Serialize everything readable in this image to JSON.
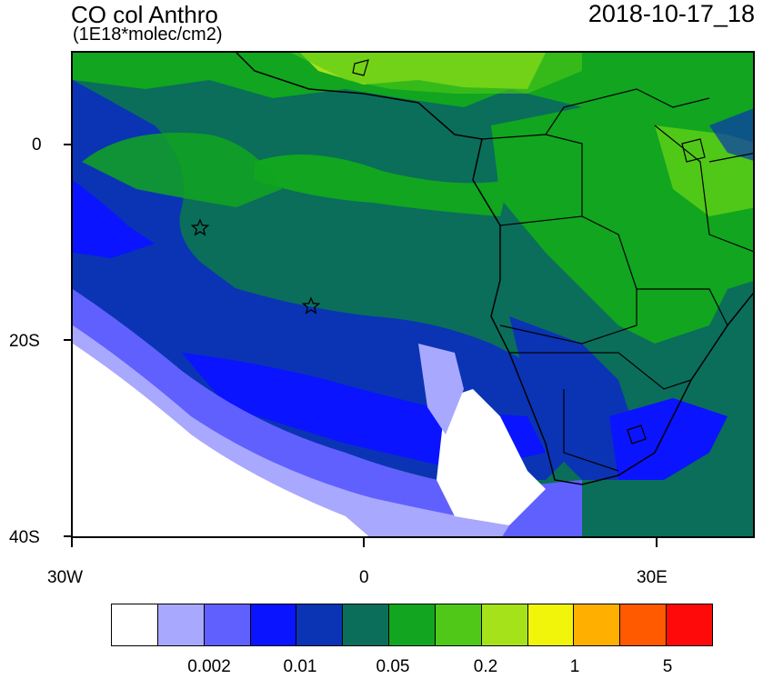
{
  "title": "CO col Anthro",
  "units": "(1E18*molec/cm2)",
  "datetime": "2018-10-17_18",
  "lat_labels": [
    "0",
    "20S",
    "40S"
  ],
  "lon_labels": [
    "30W",
    "0",
    "30E"
  ],
  "colorbar": {
    "colors": [
      "#ffffff",
      "#a8a8ff",
      "#6060ff",
      "#0a14ff",
      "#0a34b4",
      "#0a6e5a",
      "#11a520",
      "#50c818",
      "#a6e21a",
      "#f0f50a",
      "#ffaf00",
      "#ff5a00",
      "#ff0a0a"
    ],
    "labels": [
      "0.002",
      "0.01",
      "0.05",
      "0.2",
      "1",
      "5"
    ]
  },
  "markers": [
    "star",
    "star"
  ],
  "map_colors": {
    "ocean_low": "#0a34b4",
    "ocean_mid": "#0a6e5a",
    "land_green": "#11a520",
    "land_light": "#50c818",
    "sahel": "#a6e21a",
    "clean_white": "#ffffff",
    "very_low": "#a8a8ff",
    "low": "#6060ff",
    "blue": "#0a14ff"
  }
}
